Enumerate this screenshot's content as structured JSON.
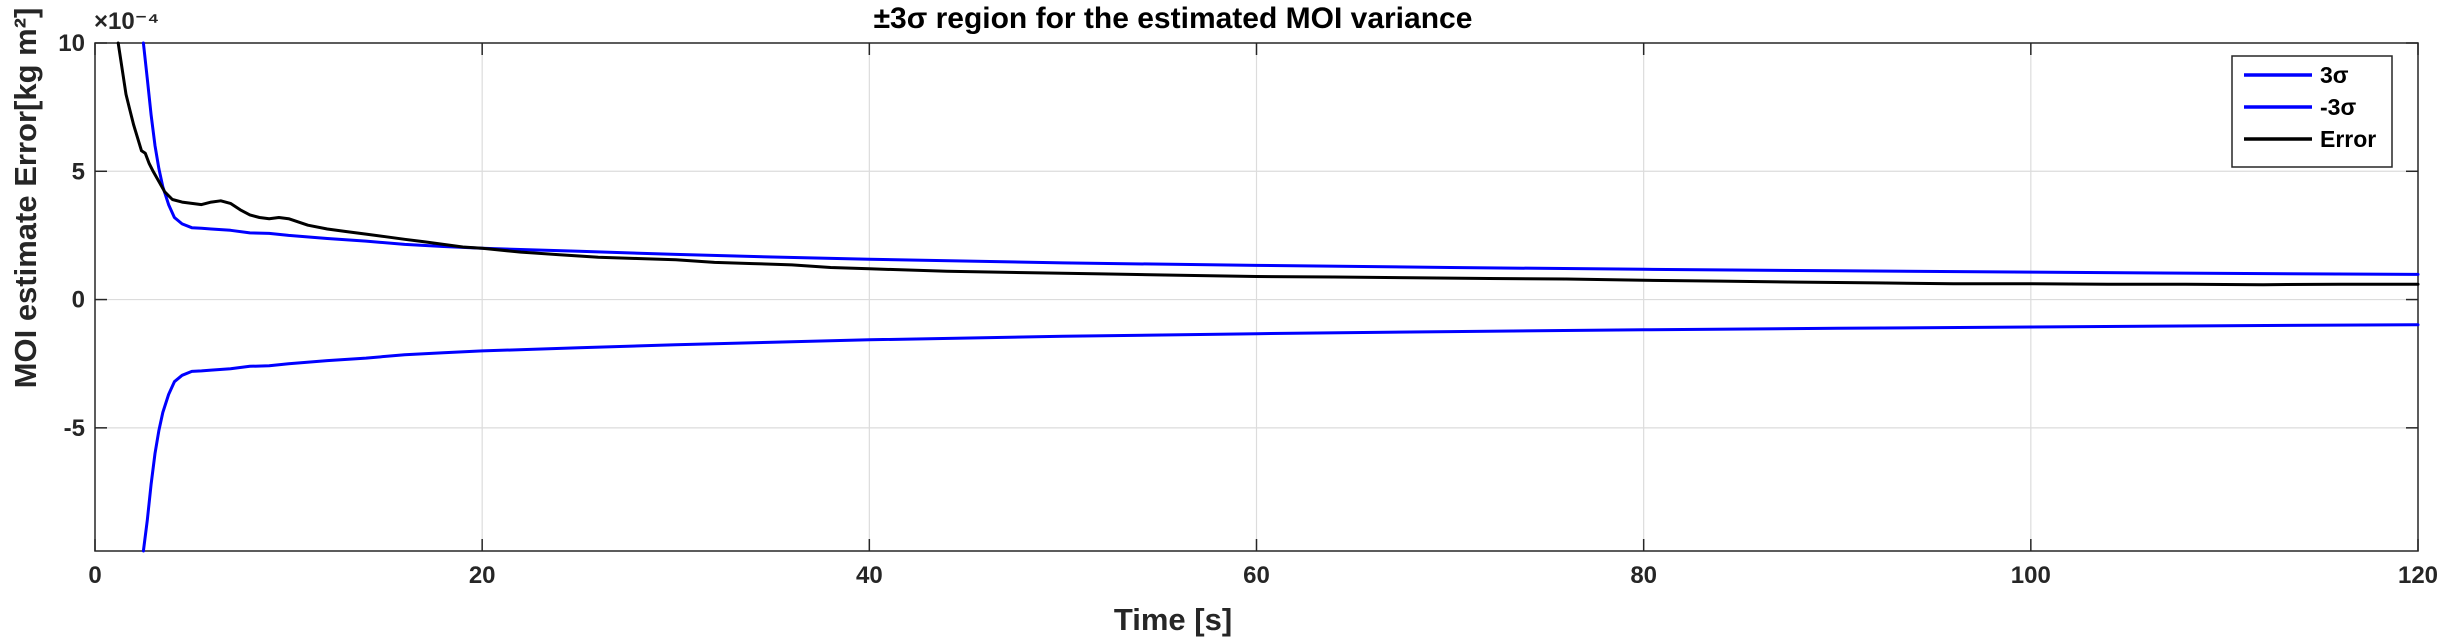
{
  "chart_data": {
    "type": "line",
    "title": "±3σ region for the estimated MOI variance",
    "xlabel": "Time [s]",
    "ylabel": "MOI estimate Error[kg m²]",
    "y_multiplier": "×10⁻⁴",
    "xlim": [
      0,
      120
    ],
    "ylim": [
      -9.8,
      10
    ],
    "x_ticks": [
      0,
      20,
      40,
      60,
      80,
      100,
      120
    ],
    "x_tick_labels": [
      "0",
      "20",
      "40",
      "60",
      "80",
      "100",
      "120"
    ],
    "y_ticks": [
      -5,
      0,
      5,
      10
    ],
    "y_tick_labels": [
      "-5",
      "0",
      "5",
      "10"
    ],
    "grid": true,
    "legend_position": "top-right",
    "series": [
      {
        "name": "3σ",
        "color": "#0000ff",
        "x": [
          2.5,
          2.7,
          2.9,
          3.1,
          3.3,
          3.5,
          3.8,
          4.1,
          4.5,
          5,
          5.5,
          6,
          7,
          8,
          9,
          10,
          12,
          14,
          16,
          18,
          20,
          25,
          30,
          35,
          40,
          50,
          60,
          70,
          80,
          90,
          100,
          110,
          120
        ],
        "y": [
          10,
          8.6,
          7.2,
          6.0,
          5.1,
          4.4,
          3.7,
          3.2,
          2.95,
          2.8,
          2.78,
          2.75,
          2.7,
          2.6,
          2.58,
          2.5,
          2.38,
          2.28,
          2.15,
          2.07,
          2.0,
          1.88,
          1.76,
          1.66,
          1.57,
          1.43,
          1.33,
          1.25,
          1.18,
          1.12,
          1.07,
          1.02,
          0.98
        ]
      },
      {
        "name": "-3σ",
        "color": "#0000ff",
        "x": [
          2.5,
          2.7,
          2.9,
          3.1,
          3.3,
          3.5,
          3.8,
          4.1,
          4.5,
          5,
          5.5,
          6,
          7,
          8,
          9,
          10,
          12,
          14,
          16,
          18,
          20,
          25,
          30,
          35,
          40,
          50,
          60,
          70,
          80,
          90,
          100,
          110,
          120
        ],
        "y": [
          -9.8,
          -8.6,
          -7.2,
          -6.0,
          -5.1,
          -4.4,
          -3.7,
          -3.2,
          -2.95,
          -2.8,
          -2.78,
          -2.75,
          -2.7,
          -2.6,
          -2.58,
          -2.5,
          -2.38,
          -2.28,
          -2.15,
          -2.07,
          -2.0,
          -1.88,
          -1.76,
          -1.66,
          -1.57,
          -1.43,
          -1.33,
          -1.25,
          -1.18,
          -1.12,
          -1.07,
          -1.02,
          -0.98
        ]
      },
      {
        "name": "Error",
        "color": "#000000",
        "x": [
          1.2,
          1.4,
          1.6,
          1.8,
          2.0,
          2.2,
          2.4,
          2.6,
          2.8,
          3.0,
          3.3,
          3.6,
          4.0,
          4.5,
          5.0,
          5.5,
          6.0,
          6.5,
          7.0,
          7.5,
          8.0,
          8.5,
          9.0,
          9.5,
          10,
          11,
          12,
          13,
          14,
          15,
          16,
          17,
          18,
          19,
          20,
          22,
          24,
          26,
          28,
          30,
          32,
          34,
          36,
          38,
          40,
          44,
          48,
          52,
          56,
          60,
          64,
          68,
          72,
          76,
          80,
          84,
          88,
          92,
          96,
          100,
          104,
          108,
          112,
          116,
          120
        ],
        "y": [
          10,
          9.0,
          8.0,
          7.4,
          6.8,
          6.3,
          5.8,
          5.7,
          5.3,
          5.0,
          4.6,
          4.2,
          3.9,
          3.8,
          3.75,
          3.7,
          3.8,
          3.85,
          3.75,
          3.5,
          3.3,
          3.2,
          3.15,
          3.2,
          3.15,
          2.9,
          2.75,
          2.65,
          2.55,
          2.45,
          2.35,
          2.25,
          2.15,
          2.05,
          2.0,
          1.85,
          1.75,
          1.65,
          1.6,
          1.55,
          1.45,
          1.4,
          1.35,
          1.25,
          1.2,
          1.1,
          1.05,
          1.0,
          0.95,
          0.9,
          0.88,
          0.85,
          0.82,
          0.8,
          0.75,
          0.72,
          0.68,
          0.65,
          0.62,
          0.62,
          0.6,
          0.6,
          0.58,
          0.6,
          0.6
        ]
      }
    ]
  }
}
